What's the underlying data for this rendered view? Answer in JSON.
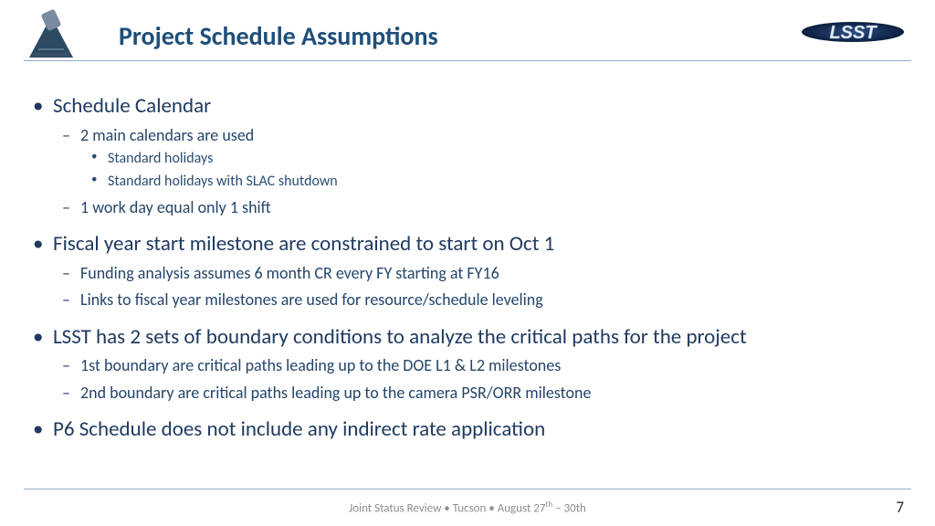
{
  "title": "Project Schedule Assumptions",
  "footer_html": "Joint Status Review • Tucson  • August 27<sup>th</sup> – 30th",
  "page_number": "7",
  "colors": {
    "title": "#1f4e79",
    "body_text": "#1f3a60",
    "rule": "#8faac8",
    "footer": "#8a8f95"
  },
  "logos": {
    "left_alt": "telescope-icon",
    "right_text": "LSST"
  },
  "bullets": [
    {
      "level": 1,
      "text": "Schedule Calendar"
    },
    {
      "level": 2,
      "text": "2 main calendars are used"
    },
    {
      "level": 3,
      "text": "Standard holidays"
    },
    {
      "level": 3,
      "text": "Standard holidays with SLAC shutdown"
    },
    {
      "level": 2,
      "text": "1 work day equal only 1 shift"
    },
    {
      "level": 1,
      "text": "Fiscal year start milestone are constrained to start on Oct 1"
    },
    {
      "level": 2,
      "text": "Funding analysis assumes 6 month CR every FY starting at FY16"
    },
    {
      "level": 2,
      "text": "Links to fiscal year milestones are used for resource/schedule leveling"
    },
    {
      "level": 1,
      "text": "LSST has 2 sets of boundary conditions to analyze the critical paths for the project"
    },
    {
      "level": 2,
      "text": "1st boundary are critical paths leading up to the DOE L1 & L2 milestones"
    },
    {
      "level": 2,
      "text": "2nd boundary are critical paths leading up to the camera PSR/ORR milestone"
    },
    {
      "level": 1,
      "text": "P6 Schedule does not include any indirect rate application"
    }
  ]
}
